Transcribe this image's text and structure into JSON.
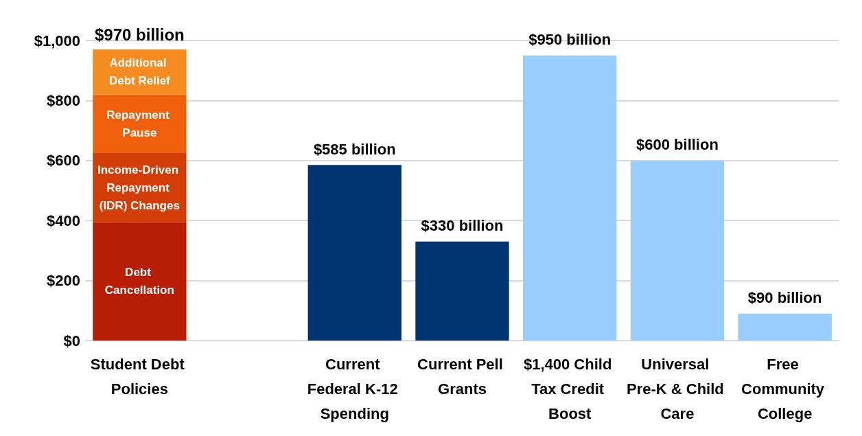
{
  "chart_data": {
    "type": "bar",
    "stacked": true,
    "categories": [
      "Student Debt Policies",
      null,
      "Current Federal K-12 Spending",
      "Current Pell Grants",
      "$1,400 Child Tax Credit Boost",
      "Universal Pre-K & Child Care",
      "Free Community College"
    ],
    "series": [
      {
        "name": "Debt Cancellation",
        "color": "#b81e06",
        "values": [
          395,
          null,
          null,
          null,
          null,
          null,
          null
        ]
      },
      {
        "name": "Income-Driven Repayment (IDR) Changes",
        "color": "#d33d08",
        "values": [
          230,
          null,
          null,
          null,
          null,
          null,
          null
        ]
      },
      {
        "name": "Repayment Pause",
        "color": "#f0600a",
        "values": [
          195,
          null,
          null,
          null,
          null,
          null,
          null
        ]
      },
      {
        "name": "Additional Debt Relief",
        "color": "#f68b22",
        "values": [
          150,
          null,
          null,
          null,
          null,
          null,
          null
        ]
      },
      {
        "color": "#003470",
        "values": [
          null,
          null,
          585,
          330,
          null,
          null,
          null
        ],
        "value_labels": [
          null,
          null,
          "$585 billion",
          "$330 billion",
          null,
          null,
          null
        ]
      },
      {
        "color": "#99ccff",
        "values": [
          null,
          null,
          null,
          null,
          950,
          600,
          90
        ],
        "value_labels": [
          null,
          null,
          null,
          null,
          "$950 billion",
          "$600 billion",
          "$90 billion"
        ]
      }
    ],
    "totals": [
      "$970 billion",
      null,
      null,
      null,
      null,
      null,
      null
    ],
    "ylim": [
      0,
      1000
    ],
    "yticks": [
      {
        "value": 0,
        "label": "$0"
      },
      {
        "value": 200,
        "label": "$200"
      },
      {
        "value": 400,
        "label": "$400"
      },
      {
        "value": 600,
        "label": "$600"
      },
      {
        "value": 800,
        "label": "$800"
      },
      {
        "value": 1000,
        "label": "$1,000"
      }
    ],
    "grid": "y",
    "legend": false
  }
}
